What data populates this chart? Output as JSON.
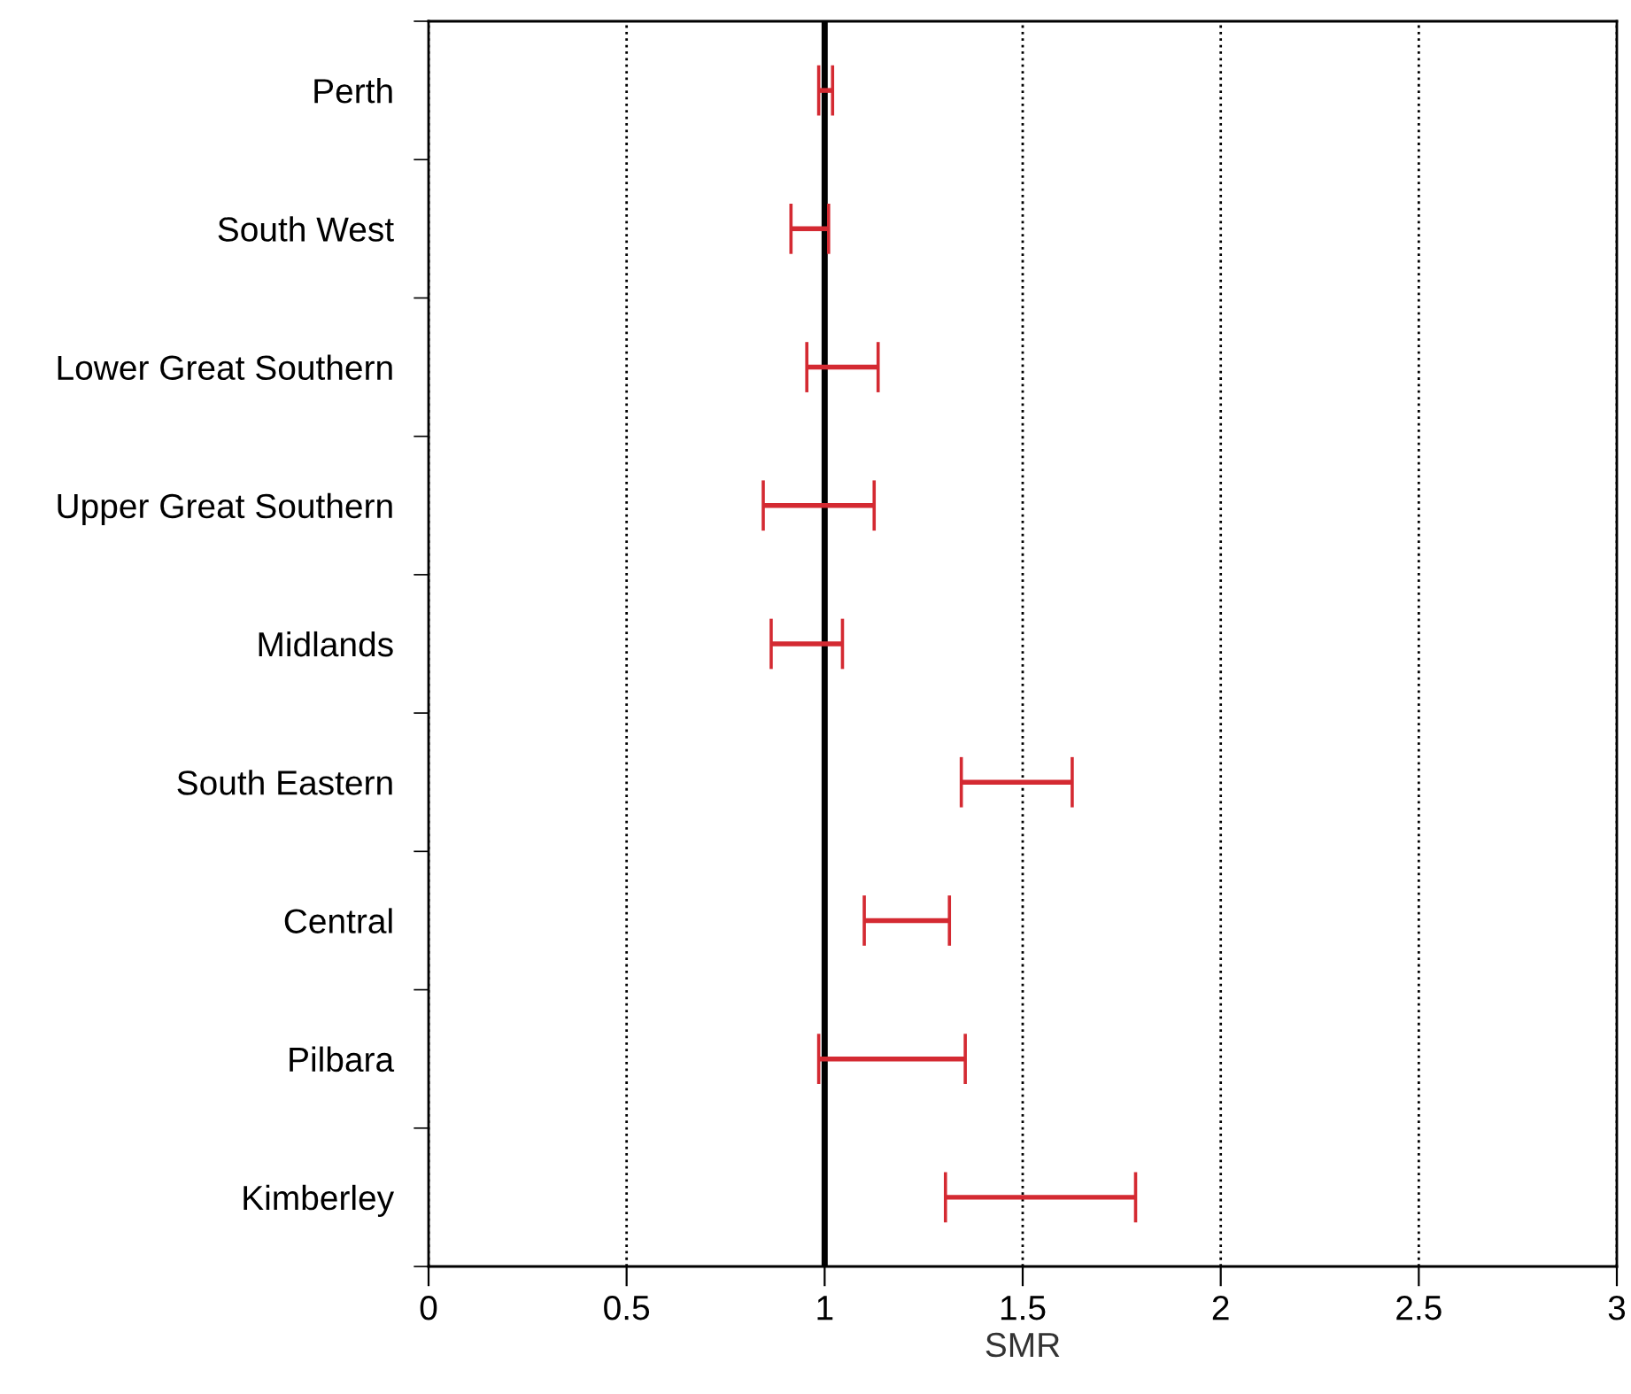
{
  "chart_data": {
    "type": "bar",
    "orientation": "horizontal",
    "xlabel": "SMR",
    "categories": [
      "Perth",
      "South West",
      "Lower Great Southern",
      "Upper Great Southern",
      "Midlands",
      "South Eastern",
      "Central",
      "Pilbara",
      "Kimberley"
    ],
    "series": [
      {
        "color": "#d42a32",
        "base": [
          0.985,
          0.915,
          0.955,
          0.845,
          0.865,
          1.345,
          1.1,
          0.985,
          1.305
        ],
        "values": [
          0.035,
          0.095,
          0.18,
          0.28,
          0.18,
          0.28,
          0.215,
          0.37,
          0.48
        ]
      }
    ],
    "xlim": [
      0,
      3
    ],
    "xticks": [
      0,
      0.5,
      1,
      1.5,
      2,
      2.5,
      3
    ],
    "ref_lines": [
      {
        "axis": "x",
        "value": 1,
        "color": "#000000",
        "line_style": "solid"
      }
    ],
    "grid": "x",
    "legend": false
  }
}
